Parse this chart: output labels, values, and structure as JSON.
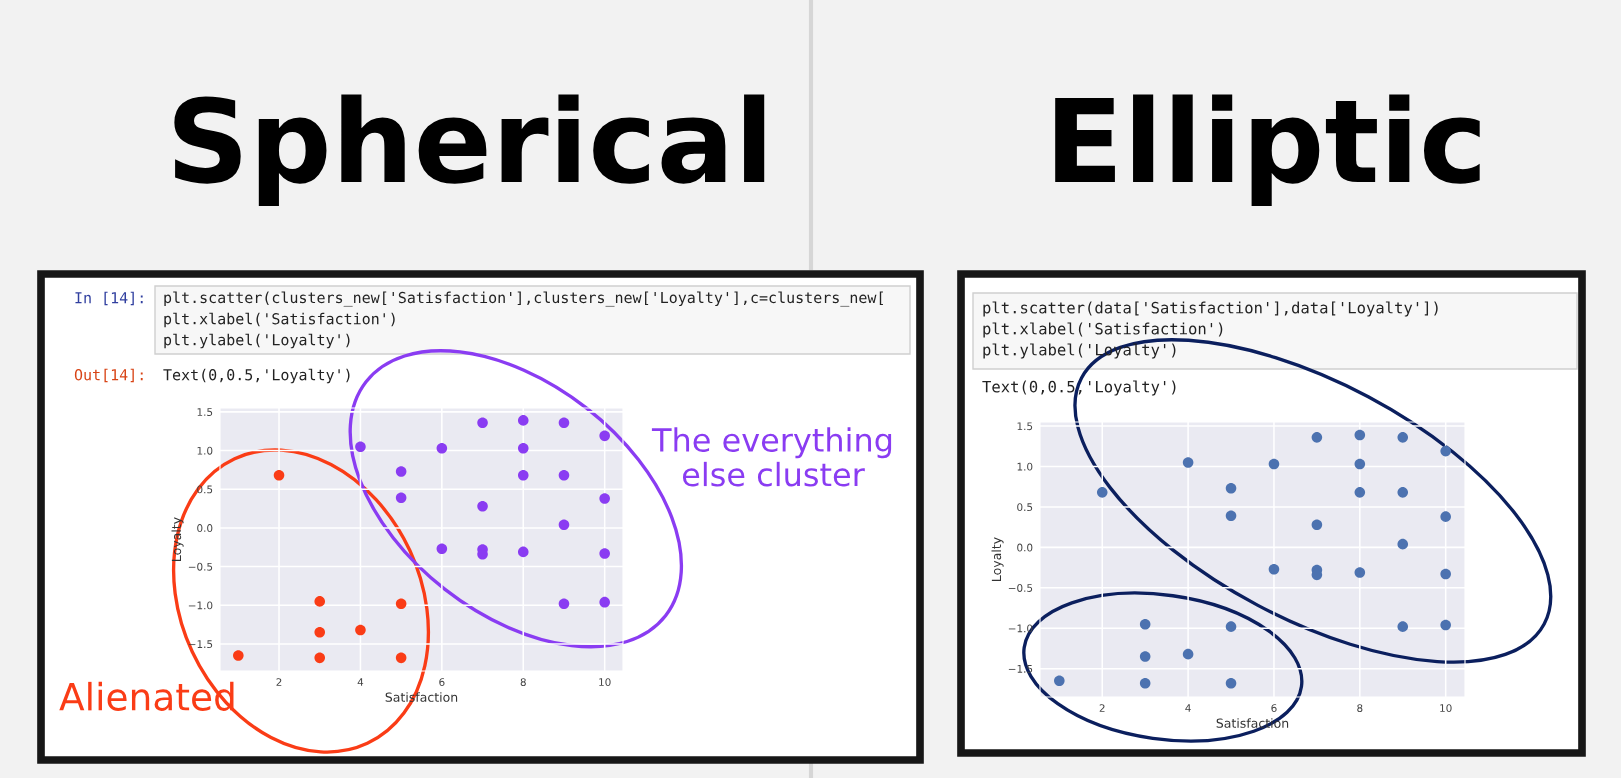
{
  "chart_data": [
    {
      "type": "scatter",
      "title": "Spherical",
      "xlabel": "Satisfaction",
      "ylabel": "Loyalty",
      "marker": "circle",
      "grid": true,
      "annotations": [
        "In [14]:",
        "plt.scatter(clusters_new['Satisfaction'],clusters_new['Loyalty'],c=clusters_new[",
        "plt.xlabel('Satisfaction')",
        "plt.ylabel('Loyalty')",
        "Out[14]:",
        "Text(0,0.5,'Loyalty')"
      ],
      "series": [
        {
          "name": "Alienated",
          "color": "#fa3c16",
          "x": [
            1,
            2,
            3,
            3,
            3,
            4,
            5,
            5
          ],
          "values": [
            -1.65,
            0.68,
            -0.95,
            -1.35,
            -1.68,
            -1.32,
            -0.98,
            -1.68
          ]
        },
        {
          "name": "The everything else cluster",
          "color": "#8a3cf2",
          "x": [
            4,
            5,
            5,
            6,
            6,
            7,
            7,
            7,
            7,
            8,
            8,
            8,
            8,
            9,
            9,
            9,
            9,
            10,
            10,
            10,
            10
          ],
          "values": [
            1.05,
            0.73,
            0.39,
            1.03,
            -0.27,
            1.36,
            0.28,
            -0.28,
            -0.34,
            1.39,
            1.03,
            0.68,
            -0.31,
            1.36,
            0.68,
            0.04,
            -0.98,
            1.19,
            0.38,
            -0.33,
            -0.96
          ]
        }
      ],
      "xlim": [
        0.55,
        10.45
      ],
      "ylim": [
        -1.85,
        1.55
      ],
      "xticks": [
        2,
        4,
        6,
        8,
        10
      ],
      "yticks": [
        {
          "value": -1.5,
          "label": "−1.5"
        },
        {
          "value": -1.0,
          "label": "−1.0"
        },
        {
          "value": -0.5,
          "label": "−0.5"
        },
        {
          "value": 0,
          "label": "0.0"
        },
        {
          "value": 0.5,
          "label": "0.5"
        },
        {
          "value": 1.0,
          "label": "1.0"
        },
        {
          "value": 1.5,
          "label": "1.5"
        }
      ]
    },
    {
      "type": "scatter",
      "title": "Elliptic",
      "xlabel": "Satisfaction",
      "ylabel": "Loyalty",
      "marker": "circle",
      "grid": true,
      "annotations": [
        "plt.scatter(data['Satisfaction'],data['Loyalty'])",
        "plt.xlabel('Satisfaction')",
        "plt.ylabel('Loyalty')",
        "Text(0,0.5,'Loyalty')"
      ],
      "series": [
        {
          "color": "#4c72b0",
          "x": [
            1,
            2,
            3,
            3,
            3,
            4,
            4,
            5,
            5,
            5,
            5,
            6,
            6,
            7,
            7,
            7,
            7,
            8,
            8,
            8,
            8,
            9,
            9,
            9,
            9,
            10,
            10,
            10,
            10
          ],
          "values": [
            -1.65,
            0.68,
            -0.95,
            -1.35,
            -1.68,
            1.05,
            -1.32,
            0.73,
            0.39,
            -0.98,
            -1.68,
            1.03,
            -0.27,
            1.36,
            0.28,
            -0.28,
            -0.34,
            1.39,
            1.03,
            0.68,
            -0.31,
            1.36,
            0.68,
            0.04,
            -0.98,
            1.19,
            0.38,
            -0.33,
            -0.96
          ]
        }
      ],
      "xlim": [
        0.55,
        10.45
      ],
      "ylim": [
        -1.85,
        1.55
      ],
      "xticks": [
        2,
        4,
        6,
        8,
        10
      ],
      "yticks": [
        {
          "value": -1.5,
          "label": "−1.5"
        },
        {
          "value": -1.0,
          "label": "−1.0"
        },
        {
          "value": -0.5,
          "label": "−0.5"
        },
        {
          "value": 0,
          "label": "0.0"
        },
        {
          "value": 0.5,
          "label": "0.5"
        },
        {
          "value": 1.0,
          "label": "1.0"
        },
        {
          "value": 1.5,
          "label": "1.5"
        }
      ]
    }
  ]
}
